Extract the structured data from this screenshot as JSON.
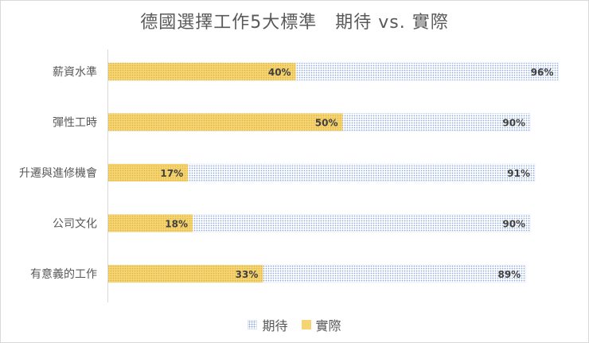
{
  "chart_data": {
    "type": "bar",
    "orientation": "horizontal",
    "title": "德國選擇工作5大標準　期待 vs. 實際",
    "categories": [
      "薪資水準",
      "彈性工時",
      "升遷與進修機會",
      "公司文化",
      "有意義的工作"
    ],
    "series": [
      {
        "name": "期待",
        "values": [
          96,
          90,
          91,
          90,
          89
        ],
        "labels": [
          "96%",
          "90%",
          "91%",
          "90%",
          "89%"
        ],
        "color": "#8eaadb",
        "pattern": "dotted"
      },
      {
        "name": "實際",
        "values": [
          40,
          50,
          17,
          18,
          33
        ],
        "labels": [
          "40%",
          "50%",
          "17%",
          "18%",
          "33%"
        ],
        "color": "#f5d472",
        "pattern": "dotted"
      }
    ],
    "xlim": [
      0,
      100
    ],
    "grid": false,
    "legend_position": "bottom",
    "overlap": true
  }
}
